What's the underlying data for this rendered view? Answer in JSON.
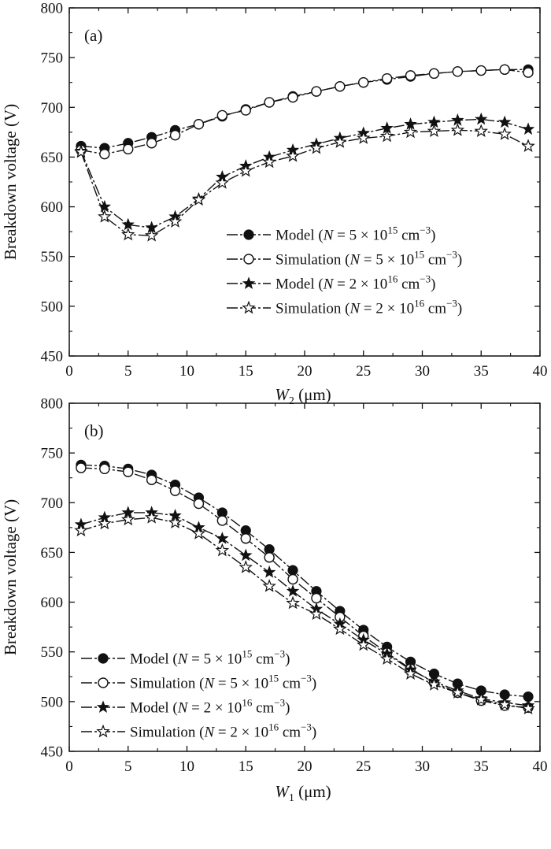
{
  "chart_data": [
    {
      "type": "line",
      "panel_label": "(a)",
      "xlabel_var": "W",
      "xlabel_sub": "2",
      "xlabel_unit": " (μm)",
      "ylabel": "Breakdown voltage (V)",
      "xlim": [
        0,
        40
      ],
      "ylim": [
        450,
        800
      ],
      "xticks": [
        0,
        5,
        10,
        15,
        20,
        25,
        30,
        35,
        40
      ],
      "yticks": [
        450,
        500,
        550,
        600,
        650,
        700,
        750,
        800
      ],
      "grid": false,
      "legend_position": "bottom-right",
      "x": [
        1,
        3,
        5,
        7,
        9,
        11,
        13,
        15,
        17,
        19,
        21,
        23,
        25,
        27,
        29,
        31,
        33,
        35,
        37,
        39
      ],
      "series": [
        {
          "name": "Model (N = 5 × 10^15 cm^−3)",
          "name_prefix": "Model (",
          "name_N": "N",
          "name_mid": " = 5 × 10",
          "name_exp": "15",
          "name_suffix": " cm",
          "name_unit_exp": "−3",
          "name_close": ")",
          "marker": "filled-circle",
          "values": [
            661,
            659,
            664,
            670,
            677,
            683,
            691,
            698,
            705,
            711,
            716,
            721,
            725,
            728,
            731,
            734,
            736,
            737,
            738,
            738
          ]
        },
        {
          "name": "Simulation (N = 5 × 10^15 cm^−3)",
          "name_prefix": "Simulation (",
          "name_N": "N",
          "name_mid": " = 5 × 10",
          "name_exp": "15",
          "name_suffix": " cm",
          "name_unit_exp": "−3",
          "name_close": ")",
          "marker": "open-circle",
          "values": [
            657,
            653,
            658,
            664,
            672,
            683,
            692,
            697,
            705,
            710,
            716,
            721,
            725,
            729,
            732,
            734,
            736,
            737,
            738,
            735
          ]
        },
        {
          "name": "Model (N = 2 × 10^16 cm^−3)",
          "name_prefix": "Model (",
          "name_N": "N",
          "name_mid": " = 2 × 10",
          "name_exp": "16",
          "name_suffix": " cm",
          "name_unit_exp": "−3",
          "name_close": ")",
          "marker": "filled-star",
          "values": [
            656,
            600,
            582,
            579,
            590,
            608,
            630,
            641,
            650,
            657,
            663,
            669,
            674,
            679,
            683,
            685,
            687,
            688,
            685,
            678
          ]
        },
        {
          "name": "Simulation (N = 2 × 10^16 cm^−3)",
          "name_prefix": "Simulation (",
          "name_N": "N",
          "name_mid": " = 2 × 10",
          "name_exp": "16",
          "name_suffix": " cm",
          "name_unit_exp": "−3",
          "name_close": ")",
          "marker": "open-star",
          "values": [
            655,
            590,
            572,
            571,
            585,
            607,
            624,
            636,
            645,
            651,
            659,
            665,
            669,
            671,
            675,
            676,
            677,
            676,
            673,
            661
          ]
        }
      ]
    },
    {
      "type": "line",
      "panel_label": "(b)",
      "xlabel_var": "W",
      "xlabel_sub": "1",
      "xlabel_unit": " (μm)",
      "ylabel": "Breakdown voltage (V)",
      "xlim": [
        0,
        40
      ],
      "ylim": [
        450,
        800
      ],
      "xticks": [
        0,
        5,
        10,
        15,
        20,
        25,
        30,
        35,
        40
      ],
      "yticks": [
        450,
        500,
        550,
        600,
        650,
        700,
        750,
        800
      ],
      "grid": false,
      "legend_position": "bottom-left",
      "x": [
        1,
        3,
        5,
        7,
        9,
        11,
        13,
        15,
        17,
        19,
        21,
        23,
        25,
        27,
        29,
        31,
        33,
        35,
        37,
        39
      ],
      "series": [
        {
          "name": "Model (N = 5 × 10^15 cm^−3)",
          "name_prefix": "Model (",
          "name_N": "N",
          "name_mid": " = 5 × 10",
          "name_exp": "15",
          "name_suffix": " cm",
          "name_unit_exp": "−3",
          "name_close": ")",
          "marker": "filled-circle",
          "values": [
            738,
            737,
            734,
            728,
            718,
            705,
            690,
            672,
            653,
            632,
            611,
            591,
            572,
            555,
            540,
            528,
            518,
            511,
            507,
            505
          ]
        },
        {
          "name": "Simulation (N = 5 × 10^15 cm^−3)",
          "name_prefix": "Simulation (",
          "name_N": "N",
          "name_mid": " = 5 × 10",
          "name_exp": "15",
          "name_suffix": " cm",
          "name_unit_exp": "−3",
          "name_close": ")",
          "marker": "open-circle",
          "values": [
            735,
            734,
            731,
            723,
            712,
            699,
            682,
            664,
            645,
            623,
            604,
            585,
            566,
            549,
            533,
            519,
            509,
            501,
            496,
            494
          ]
        },
        {
          "name": "Model (N = 2 × 10^16 cm^−3)",
          "name_prefix": "Model (",
          "name_N": "N",
          "name_mid": " = 2 × 10",
          "name_exp": "16",
          "name_suffix": " cm",
          "name_unit_exp": "−3",
          "name_close": ")",
          "marker": "filled-star",
          "values": [
            678,
            685,
            690,
            690,
            687,
            675,
            664,
            647,
            630,
            611,
            593,
            578,
            562,
            548,
            532,
            520,
            511,
            503,
            499,
            496
          ]
        },
        {
          "name": "Simulation (N = 2 × 10^16 cm^−3)",
          "name_prefix": "Simulation (",
          "name_N": "N",
          "name_mid": " = 2 × 10",
          "name_exp": "16",
          "name_suffix": " cm",
          "name_unit_exp": "−3",
          "name_close": ")",
          "marker": "open-star",
          "values": [
            672,
            679,
            683,
            685,
            680,
            669,
            652,
            635,
            616,
            599,
            588,
            573,
            557,
            543,
            528,
            517,
            509,
            502,
            497,
            493
          ]
        }
      ]
    }
  ]
}
